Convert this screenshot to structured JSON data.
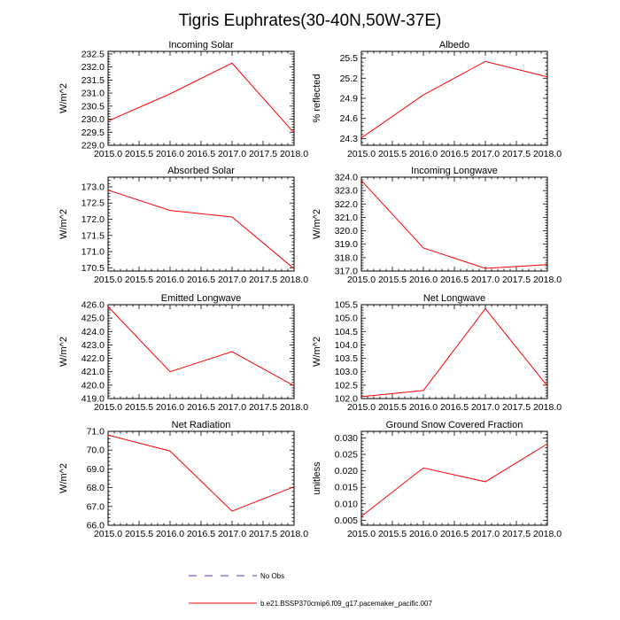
{
  "title": "Tigris Euphrates(30-40N,50W-37E)",
  "colors": {
    "series": "#ff0000",
    "obs": "#3b3bd6",
    "axis": "#000000"
  },
  "legend": [
    {
      "label": "No Obs",
      "style": "dashed",
      "color": "#3b3bd6"
    },
    {
      "label": "b.e21.BSSP370cmip6.f09_g17.pacemaker_pacific.007",
      "style": "solid",
      "color": "#ff0000"
    }
  ],
  "chart_data": [
    {
      "type": "line",
      "title": "Incoming Solar",
      "ylabel": "W/m^2",
      "x": [
        2015,
        2016,
        2017,
        2018
      ],
      "values": [
        229.93,
        230.97,
        232.15,
        229.47
      ],
      "xlim": [
        2015,
        2018
      ],
      "ylim": [
        229.0,
        232.6
      ],
      "xticks": [
        2015.0,
        2015.5,
        2016.0,
        2016.5,
        2017.0,
        2017.5,
        2018.0
      ],
      "xtick_labels": [
        "2015.0",
        "2015.5",
        "2016.0",
        "2016.5",
        "2017.0",
        "2017.5",
        "2018.0"
      ],
      "yticks": [
        229.0,
        229.5,
        230.0,
        230.5,
        231.0,
        231.5,
        232.0,
        232.5
      ],
      "ytick_labels": [
        "229.0",
        "229.5",
        "230.0",
        "230.5",
        "231.0",
        "231.5",
        "232.0",
        "232.5"
      ]
    },
    {
      "type": "line",
      "title": "Albedo",
      "ylabel": "% reflected",
      "x": [
        2015,
        2016,
        2017,
        2018
      ],
      "values": [
        24.31,
        24.95,
        25.45,
        25.22
      ],
      "xlim": [
        2015,
        2018
      ],
      "ylim": [
        24.2,
        25.6
      ],
      "xticks": [
        2015.0,
        2015.5,
        2016.0,
        2016.5,
        2017.0,
        2017.5,
        2018.0
      ],
      "xtick_labels": [
        "2015.0",
        "2015.5",
        "2016.0",
        "2016.5",
        "2017.0",
        "2017.5",
        "2018.0"
      ],
      "yticks": [
        24.3,
        24.6,
        24.9,
        25.2,
        25.5
      ],
      "ytick_labels": [
        "24.3",
        "24.6",
        "24.9",
        "25.2",
        "25.5"
      ]
    },
    {
      "type": "line",
      "title": "Absorbed Solar",
      "ylabel": "W/m^2",
      "x": [
        2015,
        2016,
        2017,
        2018
      ],
      "values": [
        172.9,
        172.27,
        172.07,
        170.47
      ],
      "xlim": [
        2015,
        2018
      ],
      "ylim": [
        170.4,
        173.3
      ],
      "xticks": [
        2015.0,
        2015.5,
        2016.0,
        2016.5,
        2017.0,
        2017.5,
        2018.0
      ],
      "xtick_labels": [
        "2015.0",
        "2015.5",
        "2016.0",
        "2016.5",
        "2017.0",
        "2017.5",
        "2018.0"
      ],
      "yticks": [
        170.5,
        171.0,
        171.5,
        172.0,
        172.5,
        173.0
      ],
      "ytick_labels": [
        "170.5",
        "171.0",
        "171.5",
        "172.0",
        "172.5",
        "173.0"
      ]
    },
    {
      "type": "line",
      "title": "Incoming Longwave",
      "ylabel": "W/m^2",
      "x": [
        2015,
        2016,
        2017,
        2018
      ],
      "values": [
        323.75,
        318.72,
        317.2,
        317.48
      ],
      "xlim": [
        2015,
        2018
      ],
      "ylim": [
        317.0,
        324.0
      ],
      "xticks": [
        2015.0,
        2015.5,
        2016.0,
        2016.5,
        2017.0,
        2017.5,
        2018.0
      ],
      "xtick_labels": [
        "2015.0",
        "2015.5",
        "2016.0",
        "2016.5",
        "2017.0",
        "2017.5",
        "2018.0"
      ],
      "yticks": [
        317.0,
        318.0,
        319.0,
        320.0,
        321.0,
        322.0,
        323.0,
        324.0
      ],
      "ytick_labels": [
        "317.0",
        "318.0",
        "319.0",
        "320.0",
        "321.0",
        "322.0",
        "323.0",
        "324.0"
      ]
    },
    {
      "type": "line",
      "title": "Emitted Longwave",
      "ylabel": "W/m^2",
      "x": [
        2015,
        2016,
        2017,
        2018
      ],
      "values": [
        425.85,
        421.0,
        422.5,
        419.95
      ],
      "xlim": [
        2015,
        2018
      ],
      "ylim": [
        419.0,
        426.0
      ],
      "xticks": [
        2015.0,
        2015.5,
        2016.0,
        2016.5,
        2017.0,
        2017.5,
        2018.0
      ],
      "xtick_labels": [
        "2015.0",
        "2015.5",
        "2016.0",
        "2016.5",
        "2017.0",
        "2017.5",
        "2018.0"
      ],
      "yticks": [
        419.0,
        420.0,
        421.0,
        422.0,
        423.0,
        424.0,
        425.0,
        426.0
      ],
      "ytick_labels": [
        "419.0",
        "420.0",
        "421.0",
        "422.0",
        "423.0",
        "424.0",
        "425.0",
        "426.0"
      ]
    },
    {
      "type": "line",
      "title": "Net Longwave",
      "ylabel": "W/m^2",
      "x": [
        2015,
        2016,
        2017,
        2018
      ],
      "values": [
        102.07,
        102.3,
        105.35,
        102.47
      ],
      "xlim": [
        2015,
        2018
      ],
      "ylim": [
        102.0,
        105.5
      ],
      "xticks": [
        2015.0,
        2015.5,
        2016.0,
        2016.5,
        2017.0,
        2017.5,
        2018.0
      ],
      "xtick_labels": [
        "2015.0",
        "2015.5",
        "2016.0",
        "2016.5",
        "2017.0",
        "2017.5",
        "2018.0"
      ],
      "yticks": [
        102.0,
        102.5,
        103.0,
        103.5,
        104.0,
        104.5,
        105.0,
        105.5
      ],
      "ytick_labels": [
        "102.0",
        "102.5",
        "103.0",
        "103.5",
        "104.0",
        "104.5",
        "105.0",
        "105.5"
      ]
    },
    {
      "type": "line",
      "title": "Net Radiation",
      "ylabel": "W/m^2",
      "x": [
        2015,
        2016,
        2017,
        2018
      ],
      "values": [
        70.8,
        69.95,
        66.75,
        68.05
      ],
      "xlim": [
        2015,
        2018
      ],
      "ylim": [
        66.0,
        71.0
      ],
      "xticks": [
        2015.0,
        2015.5,
        2016.0,
        2016.5,
        2017.0,
        2017.5,
        2018.0
      ],
      "xtick_labels": [
        "2015.0",
        "2015.5",
        "2016.0",
        "2016.5",
        "2017.0",
        "2017.5",
        "2018.0"
      ],
      "yticks": [
        66.0,
        67.0,
        68.0,
        69.0,
        70.0,
        71.0
      ],
      "ytick_labels": [
        "66.0",
        "67.0",
        "68.0",
        "69.0",
        "70.0",
        "71.0"
      ]
    },
    {
      "type": "line",
      "title": "Ground Snow Covered Fraction",
      "ylabel": "unitless",
      "x": [
        2015,
        2016,
        2017,
        2018
      ],
      "values": [
        0.0062,
        0.0209,
        0.0167,
        0.0282
      ],
      "xlim": [
        2015,
        2018
      ],
      "ylim": [
        0.0035,
        0.032
      ],
      "xticks": [
        2015.0,
        2015.5,
        2016.0,
        2016.5,
        2017.0,
        2017.5,
        2018.0
      ],
      "xtick_labels": [
        "2015.0",
        "2015.5",
        "2016.0",
        "2016.5",
        "2017.0",
        "2017.5",
        "2018.0"
      ],
      "yticks": [
        0.005,
        0.01,
        0.015,
        0.02,
        0.025,
        0.03
      ],
      "ytick_labels": [
        "0.005",
        "0.010",
        "0.015",
        "0.020",
        "0.025",
        "0.030"
      ]
    }
  ]
}
